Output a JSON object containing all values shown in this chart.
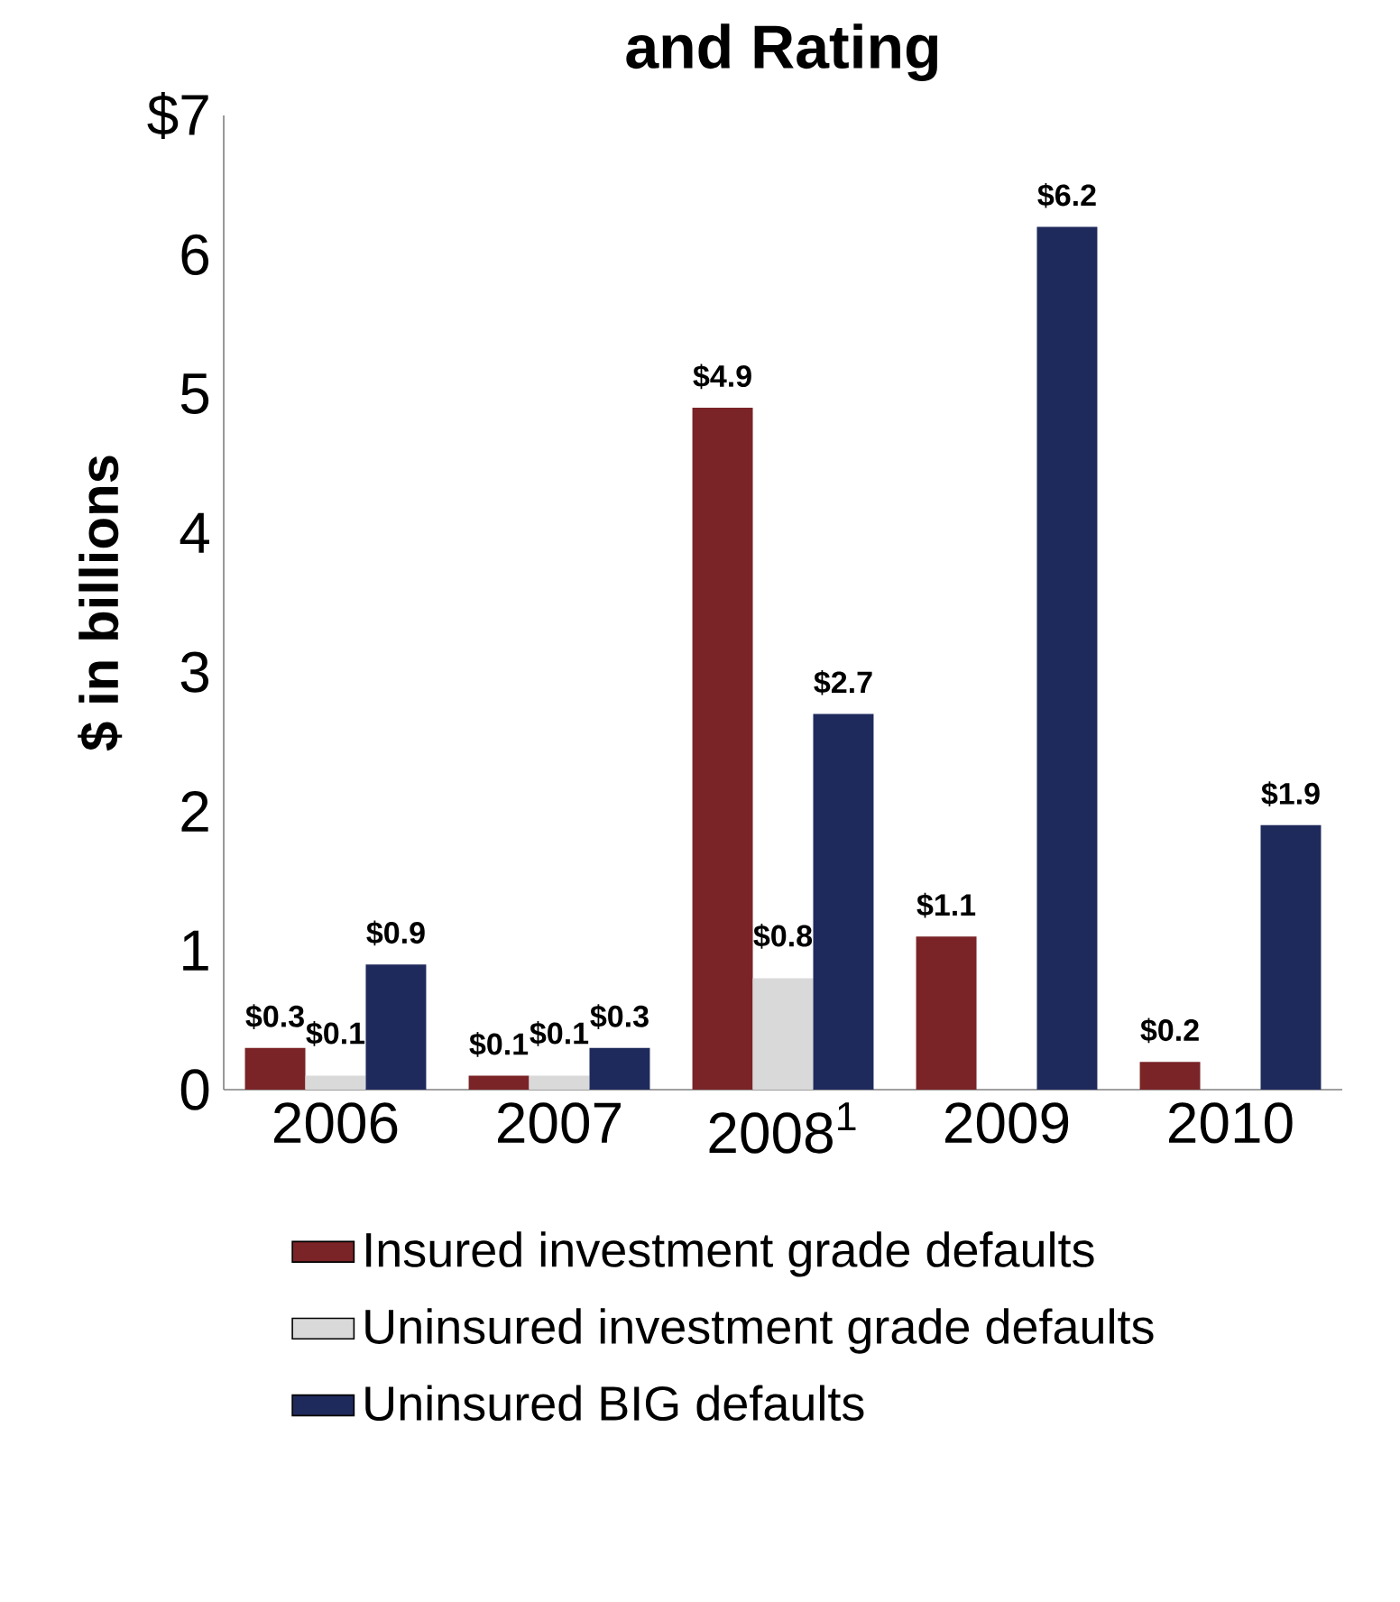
{
  "chart_data": {
    "type": "bar",
    "title": "and Rating",
    "ylabel": "$ in billions",
    "categories": [
      "2006",
      "2007",
      "2008$^{1}$",
      "2009",
      "2010"
    ],
    "series": [
      {
        "name": "Insured investment grade defaults",
        "color": "#7a2427",
        "values": [
          0.3,
          0.1,
          4.9,
          1.1,
          0.2
        ],
        "value_labels": [
          "$0.3",
          "$0.1",
          "$4.9",
          "$1.1",
          "$0.2"
        ]
      },
      {
        "name": "Uninsured investment grade defaults",
        "color": "#d9d9d9",
        "values": [
          0.1,
          0.1,
          0.8,
          null,
          null
        ],
        "value_labels": [
          "$0.1",
          "$0.1",
          "$0.8",
          null,
          null
        ]
      },
      {
        "name": "Uninsured BIG defaults",
        "color": "#1f2a5c",
        "values": [
          0.9,
          0.3,
          2.7,
          6.2,
          1.9
        ],
        "value_labels": [
          "$0.9",
          "$0.3",
          "$2.7",
          "$6.2",
          "$1.9"
        ]
      }
    ],
    "ylim": [
      0,
      7
    ],
    "yticks": [
      0,
      1,
      2,
      3,
      4,
      5,
      6,
      {
        "value": 7,
        "label": "$7"
      }
    ],
    "legend": "bottom"
  }
}
